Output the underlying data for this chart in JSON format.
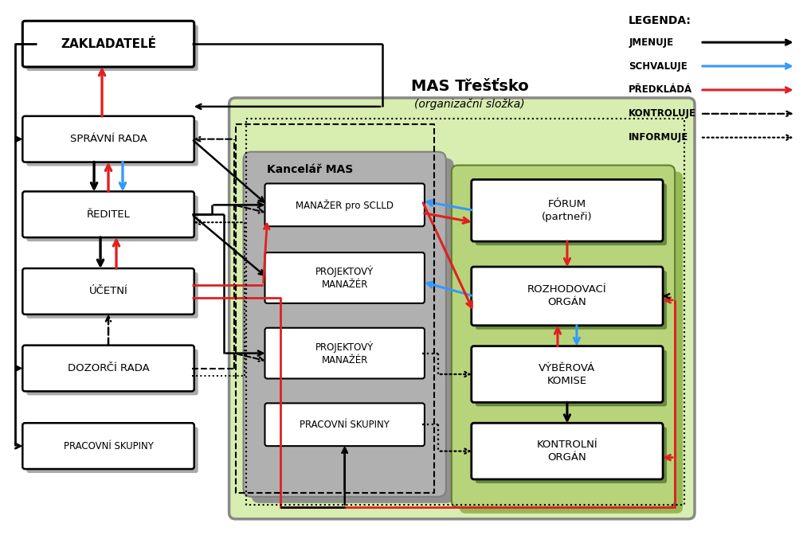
{
  "title": "MAS Třešťsko",
  "subtitle": "(organizační složka)",
  "legend_title": "LEGENDA:",
  "legend_items": [
    {
      "label": "JMENUJE",
      "color": "#000000",
      "style": "solid"
    },
    {
      "label": "SCHVALUJE",
      "color": "#2196F3",
      "style": "solid"
    },
    {
      "label": "PŘEDKLÁDÁ",
      "color": "#e02020",
      "style": "solid"
    },
    {
      "label": "KONTROLUJE",
      "color": "#000000",
      "style": "dashed"
    },
    {
      "label": "INFORMUJE",
      "color": "#000000",
      "style": "dotted"
    }
  ],
  "bg_color": "#ffffff",
  "green_bg": "#d8edb0",
  "kancelar_bg": "#b0b0b0",
  "kancelar_shadow": "#909090",
  "right_bg": "#b8d47a",
  "shadow_gray": "#aaaaaa",
  "shadow_dark": "#7a9a50"
}
